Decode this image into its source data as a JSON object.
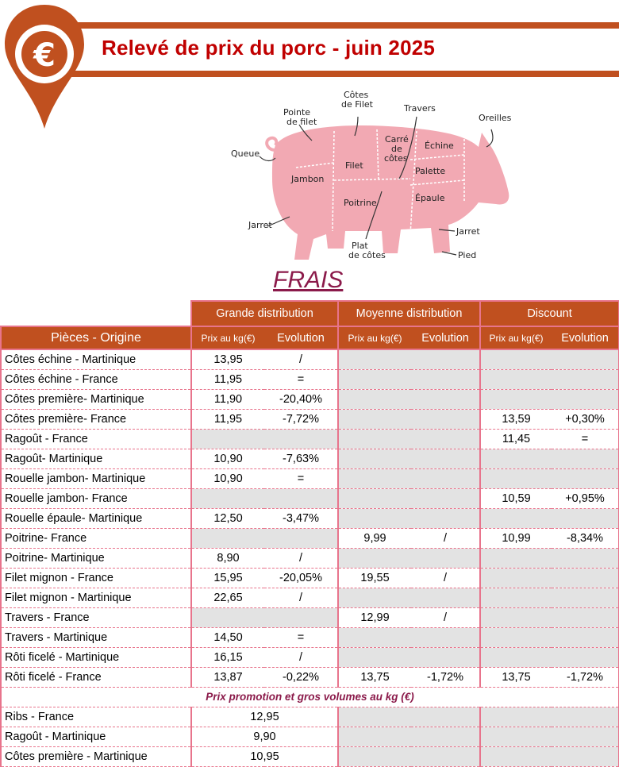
{
  "header": {
    "title": "Relevé de prix du porc - juin 2025",
    "currency_symbol": "€"
  },
  "pig_labels": {
    "queue": "Queue",
    "pointe": "Pointe\nde filet",
    "cotes_filet": "Côtes\nde Filet",
    "travers": "Travers",
    "oreilles": "Oreilles",
    "jambon": "Jambon",
    "filet": "Filet",
    "carre": "Carré\nde\ncôtes",
    "echine": "Échine",
    "palette": "Palette",
    "poitrine": "Poitrine",
    "epaule": "Épaule",
    "jarret_back": "Jarret",
    "jarret_front": "Jarret",
    "plat": "Plat\nde côtes",
    "pied": "Pied"
  },
  "section_title": "FRAIS",
  "columns": {
    "pieces": "Pièces - Origine",
    "groups": [
      "Grande distribution",
      "Moyenne distribution",
      "Discount"
    ],
    "price": "Prix au kg(€)",
    "evolution": "Evolution"
  },
  "rows": [
    {
      "name": "Côtes échine - Martinique",
      "gd_p": "13,95",
      "gd_e": "/",
      "md_p": "",
      "md_e": "",
      "d_p": "",
      "d_e": ""
    },
    {
      "name": "Côtes échine - France",
      "gd_p": "11,95",
      "gd_e": "=",
      "md_p": "",
      "md_e": "",
      "d_p": "",
      "d_e": ""
    },
    {
      "name": "Côtes première- Martinique",
      "gd_p": "11,90",
      "gd_e": "-20,40%",
      "md_p": "",
      "md_e": "",
      "d_p": "",
      "d_e": ""
    },
    {
      "name": "Côtes première- France",
      "gd_p": "11,95",
      "gd_e": "-7,72%",
      "md_p": "",
      "md_e": "",
      "d_p": "13,59",
      "d_e": "+0,30%"
    },
    {
      "name": "Ragoût - France",
      "gd_p": "",
      "gd_e": "",
      "md_p": "",
      "md_e": "",
      "d_p": "11,45",
      "d_e": "="
    },
    {
      "name": "Ragoût- Martinique",
      "gd_p": "10,90",
      "gd_e": "-7,63%",
      "md_p": "",
      "md_e": "",
      "d_p": "",
      "d_e": ""
    },
    {
      "name": "Rouelle jambon- Martinique",
      "gd_p": "10,90",
      "gd_e": "=",
      "md_p": "",
      "md_e": "",
      "d_p": "",
      "d_e": ""
    },
    {
      "name": "Rouelle jambon- France",
      "gd_p": "",
      "gd_e": "",
      "md_p": "",
      "md_e": "",
      "d_p": "10,59",
      "d_e": "+0,95%"
    },
    {
      "name": "Rouelle épaule- Martinique",
      "gd_p": "12,50",
      "gd_e": "-3,47%",
      "md_p": "",
      "md_e": "",
      "d_p": "",
      "d_e": ""
    },
    {
      "name": "Poitrine- France",
      "gd_p": "",
      "gd_e": "",
      "md_p": "9,99",
      "md_e": "/",
      "d_p": "10,99",
      "d_e": "-8,34%"
    },
    {
      "name": "Poitrine- Martinique",
      "gd_p": "8,90",
      "gd_e": "/",
      "md_p": "",
      "md_e": "",
      "d_p": "",
      "d_e": ""
    },
    {
      "name": "Filet mignon - France",
      "gd_p": "15,95",
      "gd_e": "-20,05%",
      "md_p": "19,55",
      "md_e": "/",
      "d_p": "",
      "d_e": ""
    },
    {
      "name": "Filet mignon - Martinique",
      "gd_p": "22,65",
      "gd_e": "/",
      "md_p": "",
      "md_e": "",
      "d_p": "",
      "d_e": ""
    },
    {
      "name": "Travers - France",
      "gd_p": "",
      "gd_e": "",
      "md_p": "12,99",
      "md_e": "/",
      "d_p": "",
      "d_e": ""
    },
    {
      "name": "Travers - Martinique",
      "gd_p": "14,50",
      "gd_e": "=",
      "md_p": "",
      "md_e": "",
      "d_p": "",
      "d_e": ""
    },
    {
      "name": "Rôti ficelé - Martinique",
      "gd_p": "16,15",
      "gd_e": "/",
      "md_p": "",
      "md_e": "",
      "d_p": "",
      "d_e": ""
    },
    {
      "name": "Rôti ficelé - France",
      "gd_p": "13,87",
      "gd_e": "-0,22%",
      "md_p": "13,75",
      "md_e": "-1,72%",
      "d_p": "13,75",
      "d_e": "-1,72%"
    }
  ],
  "promo_title": "Prix promotion et gros volumes au kg (€)",
  "promo_rows": [
    {
      "name": "Ribs - France",
      "gd": "12,95"
    },
    {
      "name": "Ragoût - Martinique",
      "gd": "9,90"
    },
    {
      "name": "Côtes première - Martinique",
      "gd": "10,95"
    }
  ],
  "colors": {
    "accent": "#c0501f",
    "title": "#c00000",
    "border": "#e8748c",
    "grey": "#e3e3e3",
    "section": "#8b1a4a",
    "pig": "#f2a9b3"
  }
}
